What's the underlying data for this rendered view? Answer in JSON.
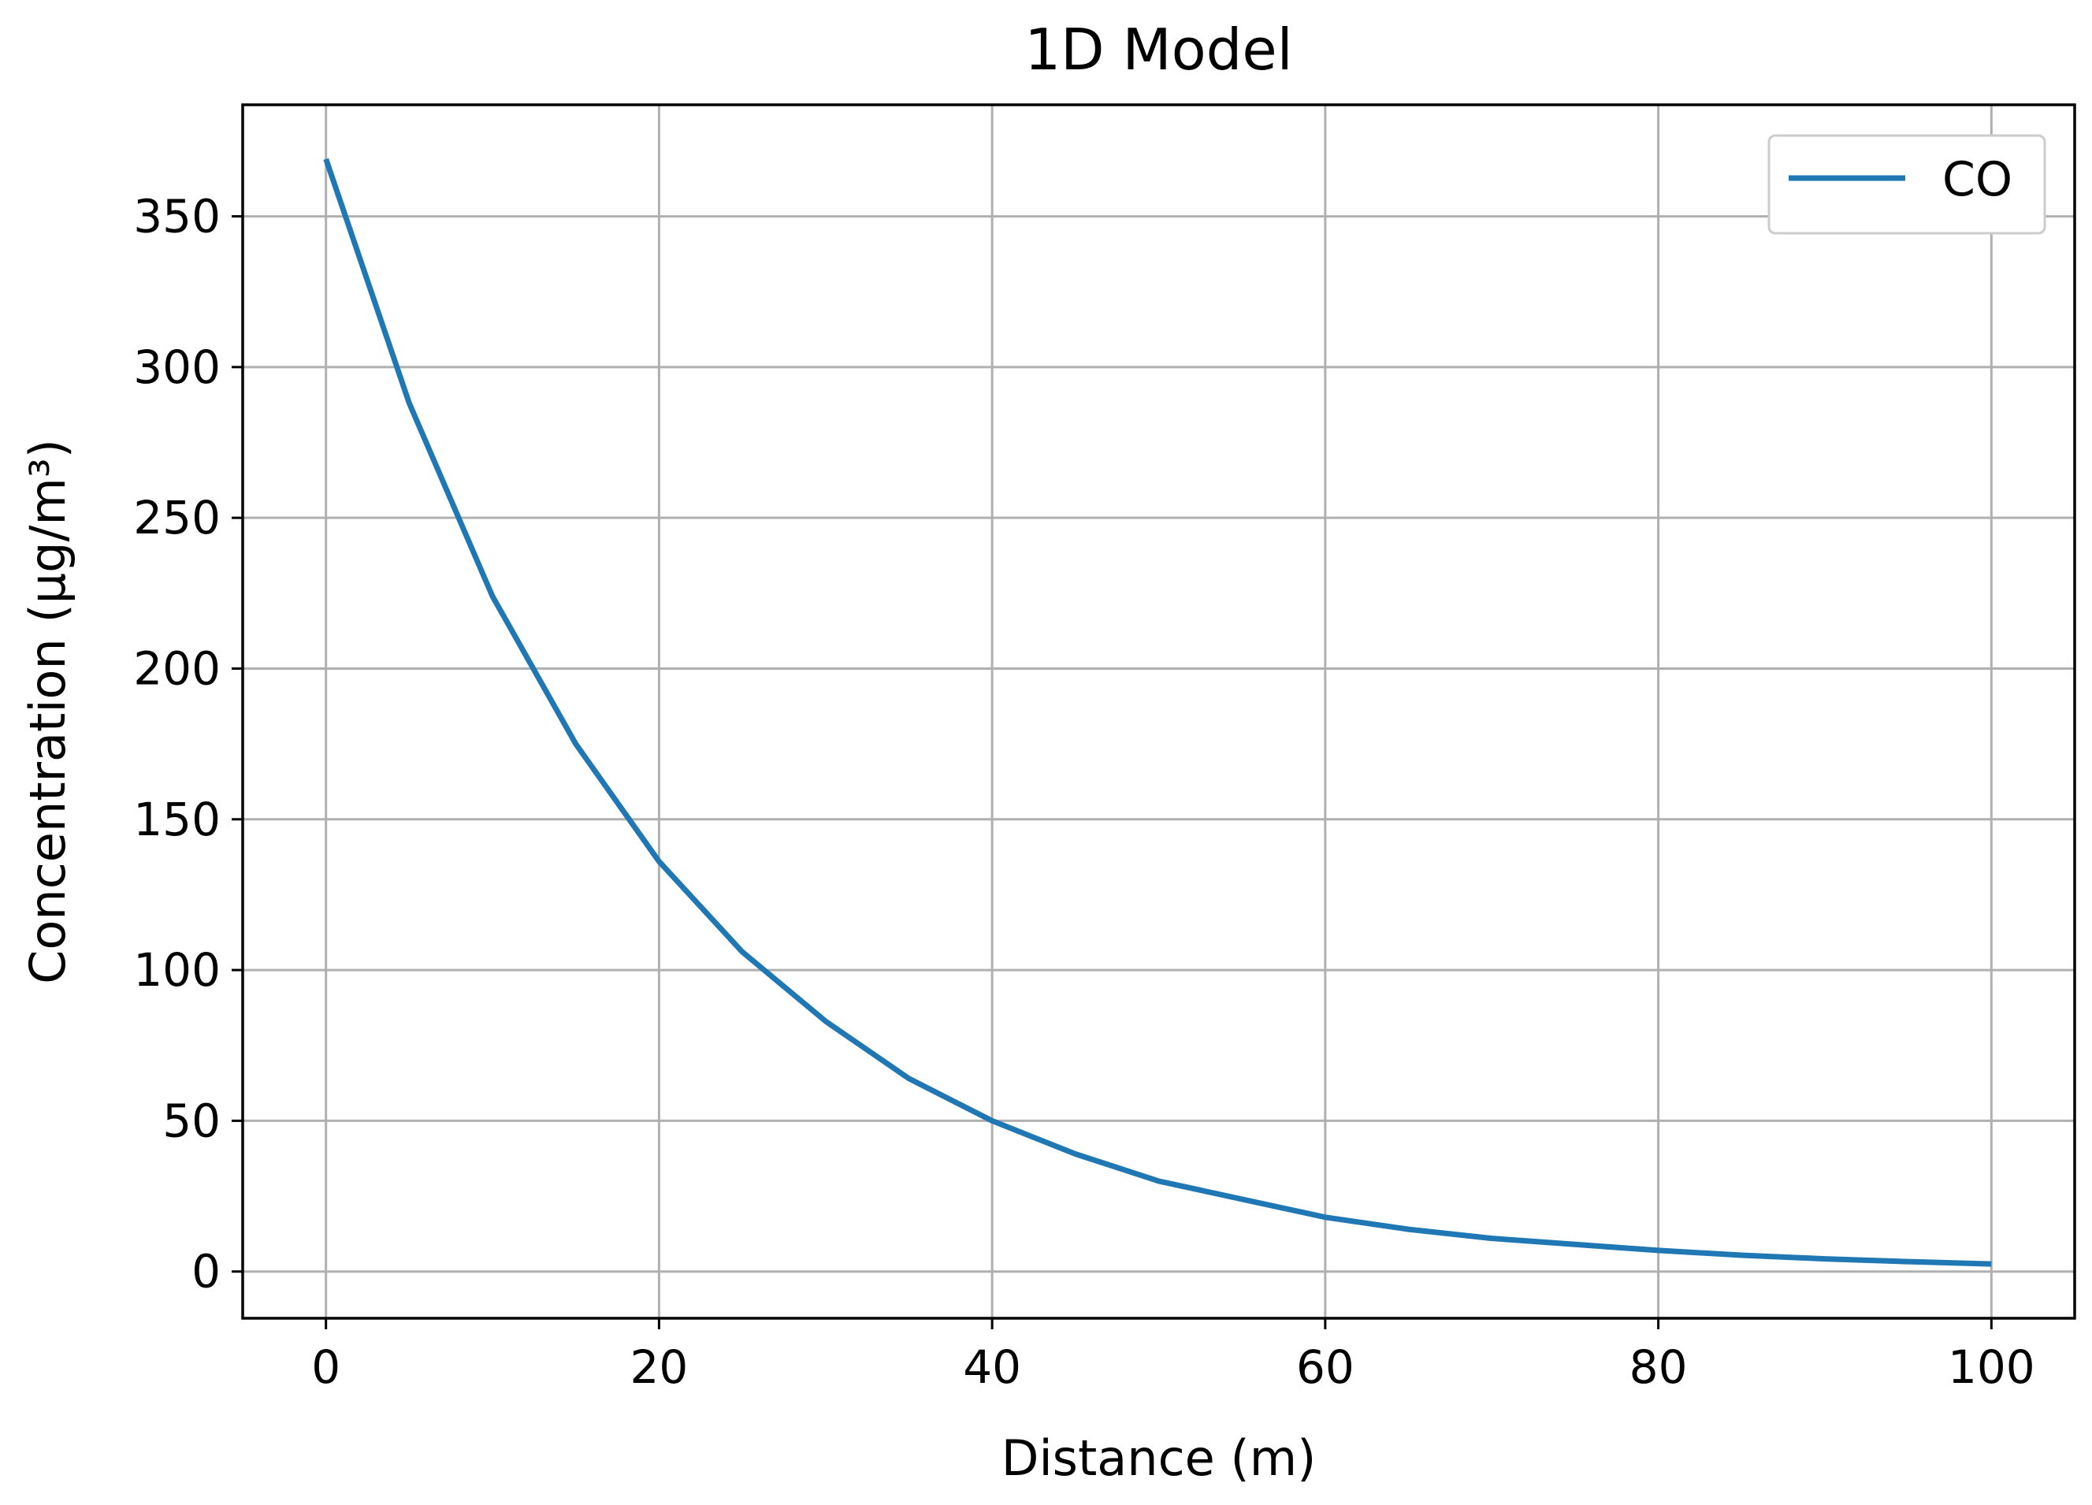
{
  "chart_data": {
    "type": "line",
    "title": "1D Model",
    "xlabel": "Distance (m)",
    "ylabel": "Concentration (μg/m³)",
    "xlim": [
      -5,
      105
    ],
    "ylim": [
      -15.5,
      387
    ],
    "xticks": [
      0,
      20,
      40,
      60,
      80,
      100
    ],
    "yticks": [
      0,
      50,
      100,
      150,
      200,
      250,
      300,
      350
    ],
    "grid": true,
    "legend_position": "top-right",
    "series": [
      {
        "name": "CO",
        "color": "#1f77b4",
        "x": [
          0,
          5,
          10,
          15,
          20,
          25,
          30,
          35,
          40,
          45,
          50,
          55,
          60,
          65,
          70,
          75,
          80,
          85,
          90,
          95,
          100
        ],
        "y": [
          369,
          288,
          224,
          175,
          136,
          106,
          83,
          64,
          50,
          39,
          30,
          24,
          18,
          14,
          11,
          9,
          7,
          5.4,
          4.2,
          3.3,
          2.5
        ]
      }
    ]
  }
}
